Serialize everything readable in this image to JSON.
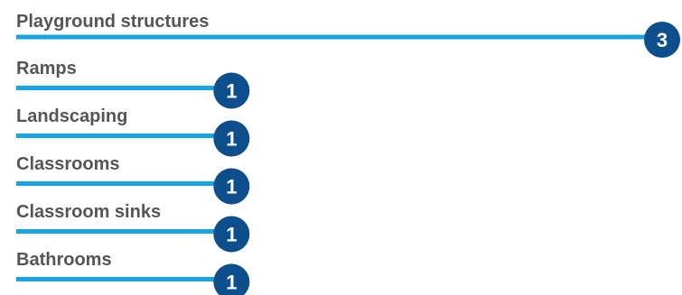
{
  "chart_data": {
    "type": "bar",
    "orientation": "horizontal",
    "categories": [
      "Playground structures",
      "Ramps",
      "Landscaping",
      "Classrooms",
      "Classroom sinks",
      "Bathrooms"
    ],
    "values": [
      3,
      1,
      1,
      1,
      1,
      1
    ],
    "title": "",
    "xlabel": "",
    "ylabel": "",
    "xlim": [
      0,
      3
    ],
    "grid": false,
    "legend": "none",
    "value_labels": "badge at bar end",
    "colors": {
      "bar": "#1aa3e3",
      "badge": "#0d4f8c",
      "badge_text": "#ffffff",
      "label_text": "#555555"
    }
  }
}
